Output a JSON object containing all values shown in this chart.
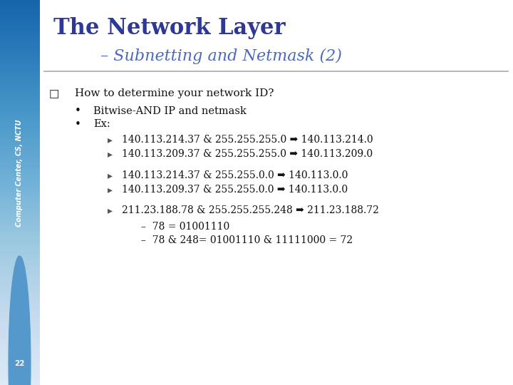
{
  "title_main": "The Network Layer",
  "title_sub": "– Subnetting and Netmask (2)",
  "sidebar_text": "Computer Center, CS, NCTU",
  "sidebar_bg_top": "#7ab8e8",
  "sidebar_bg_bot": "#d8ecf8",
  "main_bg": "#ffffff",
  "title_color": "#2e3896",
  "subtitle_color": "#4a6abf",
  "page_number": "22",
  "line_color": "#aaaaaa",
  "text_color": "#111111",
  "bullet_q": "How to determine your network ID?",
  "bullet1": "Bitwise-AND IP and netmask",
  "bullet2": "Ex:",
  "arrow": "➜"
}
